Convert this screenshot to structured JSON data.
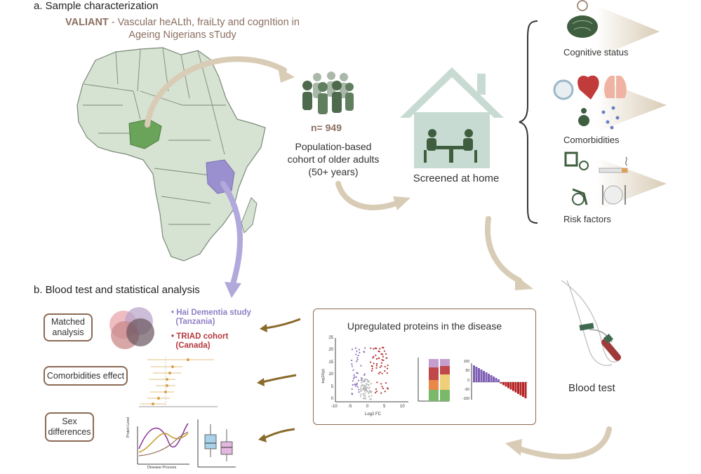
{
  "section_a": {
    "title": "a. Sample characterization",
    "acronym": "VALIANT",
    "subtitle_line1": " - Vascular heALth, fraiLty and cognItion in",
    "subtitle_line2": "Ageing Nigerians sTudy"
  },
  "cohort": {
    "n": "n= 949",
    "desc_line1": "Population-based",
    "desc_line2": "cohort of older adults",
    "desc_line3": "(50+ years)"
  },
  "home": {
    "label": "Screened at home"
  },
  "assessments": {
    "cognitive": "Cognitive status",
    "comorbidities": "Comorbidities",
    "risk": "Risk factors"
  },
  "section_b": {
    "title": "b. Blood test and statistical analysis"
  },
  "analyses": {
    "matched_line1": "Matched",
    "matched_line2": "analysis",
    "comorbidities_effect": "Comorbidities effect",
    "sex_line1": "Sex",
    "sex_line2": "differences"
  },
  "legend": {
    "hai_line1": "Hai Dementia study",
    "hai_line2": "(Tanzania)",
    "triad_line1": "TRIAD cohort",
    "triad_line2": "(Canada)"
  },
  "proteins": {
    "title": "Upregulated proteins in the disease",
    "volcano_ylabel": "-log10(p)",
    "volcano_xlabel": "Log2 FC",
    "volcano_xticks": [
      "-10",
      "-5",
      "0",
      "5",
      "10"
    ],
    "volcano_yticks": [
      "0",
      "5",
      "10",
      "15",
      "20",
      "25"
    ],
    "bar_yticks": [
      "100",
      "50",
      "0",
      "-50",
      "-100"
    ]
  },
  "blood": {
    "label": "Blood test"
  },
  "line_chart": {
    "ylabel": "Protein Level",
    "xlabel": "Disease Process"
  },
  "colors": {
    "nigeria": "#6aa35a",
    "tanzania": "#9b90cf",
    "hai": "#8f7fc4",
    "triad": "#b5383e",
    "box_border": "#8a6a55",
    "arrow": "#d9ccb6"
  }
}
